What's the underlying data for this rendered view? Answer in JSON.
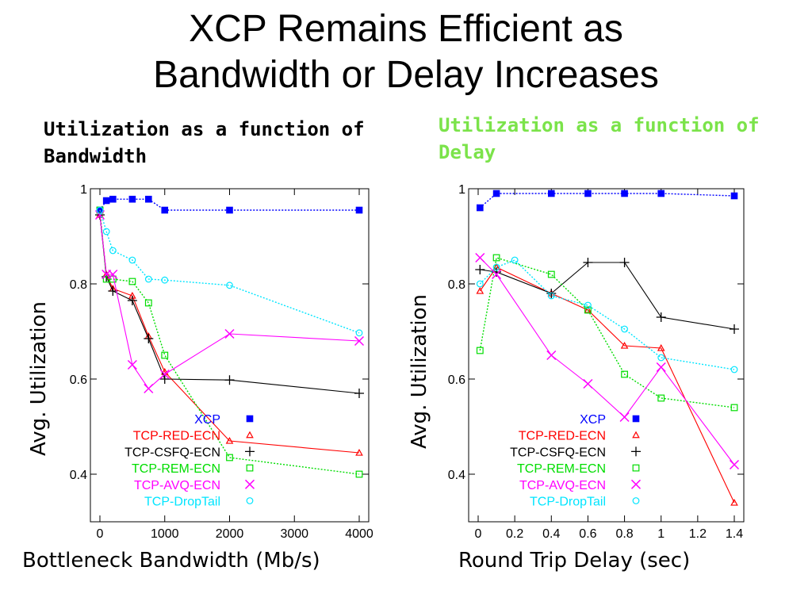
{
  "title_line1": "XCP Remains Efficient as",
  "title_line2": "Bandwidth or Delay Increases",
  "left_heading": "Utilization as a function of Bandwidth",
  "right_heading": "Utilization as a function of Delay",
  "colors": {
    "XCP": "#0000ff",
    "TCP-RED-ECN": "#ff0000",
    "TCP-CSFQ-ECN": "#000000",
    "TCP-REM-ECN": "#00dd00",
    "TCP-AVQ-ECN": "#ff00ff",
    "TCP-DropTail": "#00e5ff",
    "right_heading": "#7be34a"
  },
  "chart_data": [
    {
      "type": "line",
      "xlabel": "Bottleneck Bandwidth (Mb/s)",
      "ylabel": "Avg. Utilization",
      "xlim": [
        0,
        4000
      ],
      "ylim": [
        0.3,
        1
      ],
      "xticks": [
        0,
        1000,
        2000,
        3000,
        4000
      ],
      "yticks": [
        0.4,
        0.6,
        0.8,
        1
      ],
      "ytick_labels": [
        "0.4",
        "0.6",
        "0.8",
        "1"
      ],
      "legend_position": "bottom-right",
      "series": [
        {
          "name": "XCP",
          "marker": "square-filled",
          "x": [
            0,
            100,
            200,
            500,
            750,
            1000,
            2000,
            4000
          ],
          "y": [
            0.955,
            0.975,
            0.978,
            0.978,
            0.978,
            0.955,
            0.955,
            0.955
          ]
        },
        {
          "name": "TCP-RED-ECN",
          "marker": "triangle",
          "x": [
            0,
            100,
            200,
            500,
            750,
            1000,
            2000,
            4000
          ],
          "y": [
            0.945,
            0.82,
            0.79,
            0.775,
            0.69,
            0.615,
            0.47,
            0.445
          ]
        },
        {
          "name": "TCP-CSFQ-ECN",
          "marker": "plus",
          "x": [
            0,
            100,
            200,
            500,
            750,
            1000,
            2000,
            4000
          ],
          "y": [
            0.945,
            0.815,
            0.785,
            0.765,
            0.685,
            0.6,
            0.598,
            0.57
          ]
        },
        {
          "name": "TCP-REM-ECN",
          "marker": "square-open",
          "x": [
            0,
            100,
            200,
            500,
            750,
            1000,
            2000,
            4000
          ],
          "y": [
            0.955,
            0.81,
            0.81,
            0.805,
            0.76,
            0.65,
            0.435,
            0.4
          ]
        },
        {
          "name": "TCP-AVQ-ECN",
          "marker": "x",
          "x": [
            0,
            100,
            200,
            500,
            750,
            1000,
            2000,
            4000
          ],
          "y": [
            0.945,
            0.82,
            0.82,
            0.63,
            0.58,
            0.61,
            0.695,
            0.68
          ]
        },
        {
          "name": "TCP-DropTail",
          "marker": "circle",
          "x": [
            0,
            100,
            200,
            500,
            750,
            1000,
            2000,
            4000
          ],
          "y": [
            0.955,
            0.91,
            0.87,
            0.85,
            0.81,
            0.808,
            0.797,
            0.697
          ]
        }
      ]
    },
    {
      "type": "line",
      "xlabel": "Round Trip Delay (sec)",
      "ylabel": "Avg. Utilization",
      "xlim": [
        0,
        1.4
      ],
      "ylim": [
        0.3,
        1
      ],
      "xticks": [
        0,
        0.2,
        0.4,
        0.6,
        0.8,
        1,
        1.2,
        1.4
      ],
      "xtick_labels": [
        "0",
        "0.2",
        "0.4",
        "0.6",
        "0.8",
        "1",
        "1.2",
        "1.4"
      ],
      "yticks": [
        0.4,
        0.6,
        0.8,
        1
      ],
      "ytick_labels": [
        "0.4",
        "0.6",
        "0.8",
        "1"
      ],
      "legend_position": "bottom-right",
      "series": [
        {
          "name": "XCP",
          "marker": "square-filled",
          "x": [
            0.01,
            0.1,
            0.4,
            0.6,
            0.8,
            1.0,
            1.4
          ],
          "y": [
            0.96,
            0.99,
            0.99,
            0.99,
            0.99,
            0.99,
            0.985
          ]
        },
        {
          "name": "TCP-RED-ECN",
          "marker": "triangle",
          "x": [
            0.01,
            0.1,
            0.4,
            0.6,
            0.8,
            1.0,
            1.4
          ],
          "y": [
            0.785,
            0.835,
            0.78,
            0.745,
            0.67,
            0.665,
            0.34
          ]
        },
        {
          "name": "TCP-CSFQ-ECN",
          "marker": "plus",
          "x": [
            0.01,
            0.1,
            0.4,
            0.6,
            0.8,
            1.0,
            1.4
          ],
          "y": [
            0.83,
            0.825,
            0.78,
            0.845,
            0.845,
            0.73,
            0.705
          ]
        },
        {
          "name": "TCP-REM-ECN",
          "marker": "square-open",
          "x": [
            0.01,
            0.1,
            0.4,
            0.6,
            0.8,
            1.0,
            1.4
          ],
          "y": [
            0.66,
            0.855,
            0.82,
            0.745,
            0.61,
            0.56,
            0.54
          ]
        },
        {
          "name": "TCP-AVQ-ECN",
          "marker": "x",
          "x": [
            0.01,
            0.1,
            0.4,
            0.6,
            0.8,
            1.0,
            1.4
          ],
          "y": [
            0.855,
            0.82,
            0.65,
            0.59,
            0.52,
            0.625,
            0.42
          ]
        },
        {
          "name": "TCP-DropTail",
          "marker": "circle",
          "x": [
            0.01,
            0.1,
            0.2,
            0.4,
            0.6,
            0.8,
            1.0,
            1.4
          ],
          "y": [
            0.8,
            0.835,
            0.85,
            0.775,
            0.755,
            0.705,
            0.645,
            0.62
          ]
        }
      ]
    }
  ]
}
